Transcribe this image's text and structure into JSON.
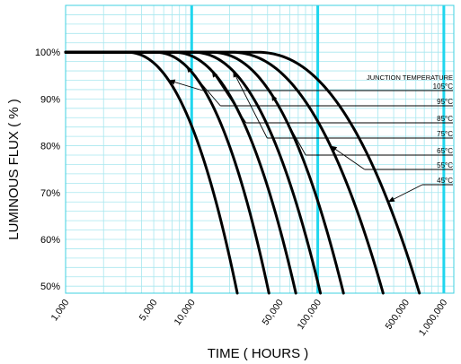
{
  "chart_data": {
    "type": "line",
    "xlabel": "TIME ( HOURS )",
    "ylabel": "LUMINOUS FLUX ( % )",
    "x_scale": "log",
    "xlim": [
      1000,
      1200000
    ],
    "ylim": [
      48.5,
      110
    ],
    "grid": true,
    "major_gridlines_x": [
      10000,
      100000,
      1000000
    ],
    "x_ticks": [
      {
        "value": 1000,
        "label": "1,000"
      },
      {
        "value": 5000,
        "label": "5,000"
      },
      {
        "value": 10000,
        "label": "10,000"
      },
      {
        "value": 50000,
        "label": "50,000"
      },
      {
        "value": 100000,
        "label": "100,000"
      },
      {
        "value": 500000,
        "label": "500,000"
      },
      {
        "value": 1000000,
        "label": "1,000,000"
      }
    ],
    "y_ticks": [
      {
        "value": 50,
        "label": "50%"
      },
      {
        "value": 60,
        "label": "60%"
      },
      {
        "value": 70,
        "label": "70%"
      },
      {
        "value": 80,
        "label": "80%"
      },
      {
        "value": 90,
        "label": "90%"
      },
      {
        "value": 100,
        "label": "100%"
      }
    ],
    "legend_title": "JUNCTION TEMPERATURE",
    "legend_placement": "right",
    "series": [
      {
        "name": "105°C",
        "knee": 3000,
        "end": 23000
      },
      {
        "name": "95°C",
        "knee": 5000,
        "end": 41000
      },
      {
        "name": "85°C",
        "knee": 7000,
        "end": 67000
      },
      {
        "name": "75°C",
        "knee": 10000,
        "end": 105000
      },
      {
        "name": "65°C",
        "knee": 14000,
        "end": 160000
      },
      {
        "name": "55°C",
        "knee": 20000,
        "end": 330000
      },
      {
        "name": "45°C",
        "knee": 32000,
        "end": 640000
      }
    ]
  }
}
